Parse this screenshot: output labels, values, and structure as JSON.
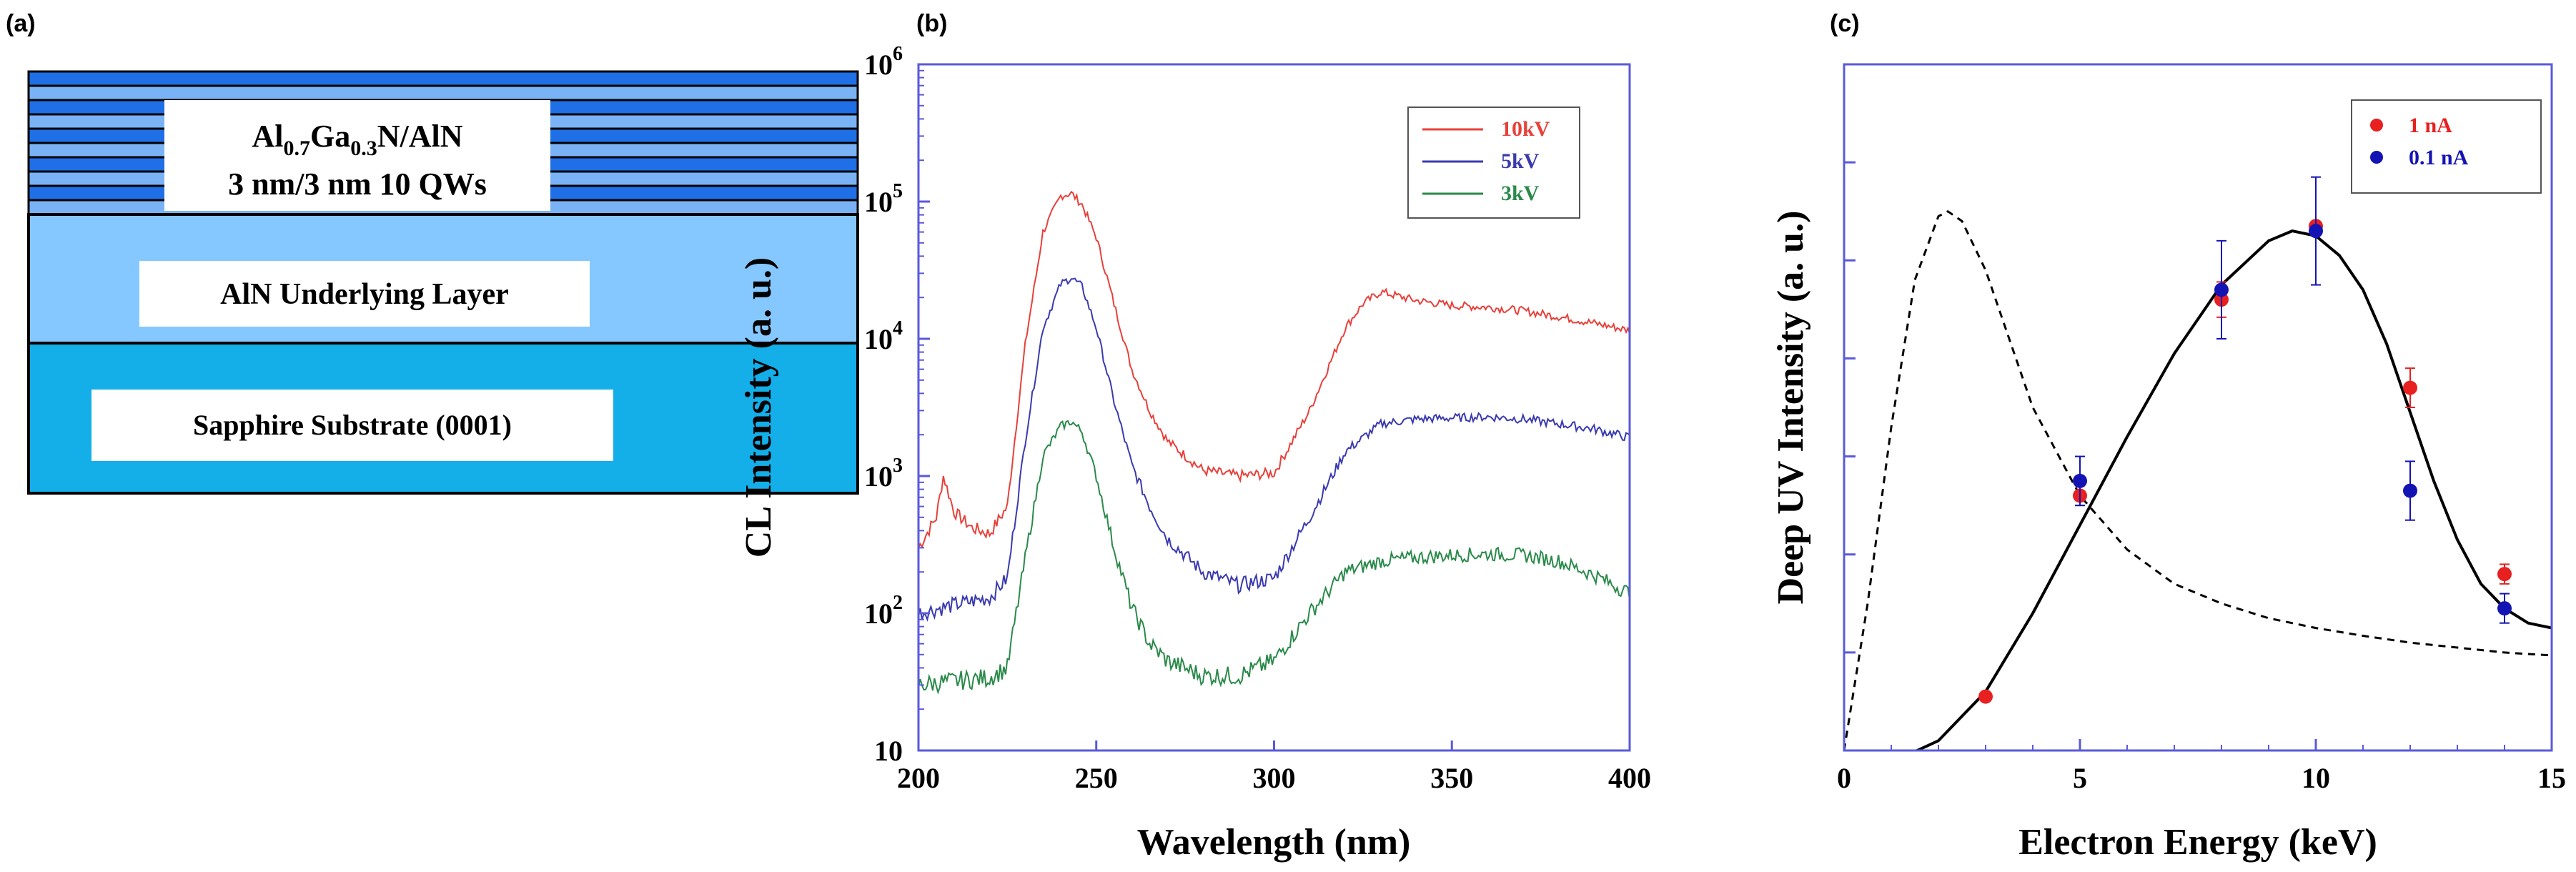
{
  "panels": {
    "a": {
      "label": "(a)"
    },
    "b": {
      "label": "(b)"
    },
    "c": {
      "label": "(c)"
    }
  },
  "structure": {
    "qw_line1_parts": [
      "Al",
      "0.7",
      "Ga",
      "0.3",
      "N/AlN"
    ],
    "qw_line2": "3 nm/3 nm 10 QWs",
    "underlying_layer": "AlN Underlying Layer",
    "substrate": "Sapphire Substrate (0001)",
    "colors": {
      "qw_dark": "#1f6fe6",
      "qw_light": "#7ab3f5",
      "underlying": "#85c8ff",
      "substrate": "#14aee8",
      "outline": "#000000"
    }
  },
  "chart_data": [
    {
      "type": "line",
      "panel": "(b)",
      "title": "",
      "xlabel": "Wavelength (nm)",
      "ylabel": "CL Intensity (a. u.)",
      "xlim": [
        200,
        400
      ],
      "ylim": [
        10,
        1000000
      ],
      "yscale": "log",
      "xticks": [
        "200",
        "250",
        "300",
        "350",
        "400"
      ],
      "yticks": [
        {
          "value": 10,
          "base": "10",
          "exp": ""
        },
        {
          "value": 100,
          "base": "10",
          "exp": "2"
        },
        {
          "value": 1000,
          "base": "10",
          "exp": "3"
        },
        {
          "value": 10000,
          "base": "10",
          "exp": "4"
        },
        {
          "value": 100000,
          "base": "10",
          "exp": "5"
        },
        {
          "value": 1000000,
          "base": "10",
          "exp": "6"
        }
      ],
      "legend_position": "top-right",
      "series": [
        {
          "name": "10kV",
          "color": "#e8403a",
          "x": [
            200,
            205,
            207,
            210,
            215,
            220,
            225,
            230,
            235,
            240,
            243,
            246,
            250,
            255,
            260,
            265,
            270,
            280,
            290,
            300,
            310,
            320,
            325,
            330,
            340,
            350,
            360,
            370,
            380,
            390,
            400
          ],
          "y": [
            300,
            500,
            1000,
            550,
            420,
            380,
            600,
            9000,
            60000,
            110000,
            115000,
            95000,
            55000,
            18000,
            6000,
            3000,
            1800,
            1100,
            1000,
            1050,
            3000,
            12000,
            18000,
            22000,
            19000,
            17500,
            17000,
            16000,
            14500,
            13000,
            11500
          ]
        },
        {
          "name": "5kV",
          "color": "#3a3ab0",
          "x": [
            200,
            210,
            220,
            225,
            230,
            235,
            240,
            243,
            246,
            250,
            255,
            260,
            265,
            270,
            280,
            290,
            300,
            310,
            320,
            330,
            340,
            350,
            360,
            370,
            380,
            390,
            400
          ],
          "y": [
            100,
            115,
            130,
            180,
            1800,
            12000,
            25000,
            28000,
            24000,
            12000,
            3500,
            1200,
            600,
            350,
            200,
            160,
            180,
            500,
            1500,
            2400,
            2600,
            2650,
            2700,
            2600,
            2400,
            2200,
            1900
          ]
        },
        {
          "name": "3kV",
          "color": "#2a8a4a",
          "x": [
            200,
            210,
            220,
            225,
            230,
            235,
            240,
            243,
            246,
            250,
            255,
            260,
            265,
            270,
            280,
            290,
            300,
            310,
            320,
            330,
            340,
            350,
            360,
            370,
            380,
            390,
            400
          ],
          "y": [
            30,
            32,
            34,
            40,
            250,
            1400,
            2300,
            2500,
            2100,
            1000,
            300,
            110,
            60,
            45,
            35,
            35,
            45,
            100,
            200,
            240,
            255,
            265,
            270,
            265,
            240,
            190,
            140
          ]
        }
      ]
    },
    {
      "type": "scatter",
      "panel": "(c)",
      "title": "",
      "xlabel": "Electron Energy (keV)",
      "ylabel": "Deep UV Intensity (a. u.)",
      "xlim": [
        0,
        15
      ],
      "ylim": [
        0,
        7
      ],
      "xticks": [
        "0",
        "5",
        "10",
        "15"
      ],
      "legend_position": "top-right",
      "series": [
        {
          "name": "1 nA",
          "color": "#e82020",
          "x": [
            3,
            5,
            8,
            10,
            12,
            14
          ],
          "y": [
            0.55,
            2.6,
            4.6,
            5.35,
            3.7,
            1.8
          ],
          "err": [
            0,
            0.1,
            0.18,
            0,
            0.2,
            0.1
          ]
        },
        {
          "name": "0.1 nA",
          "color": "#1414b4",
          "x": [
            5,
            8,
            10,
            12,
            14
          ],
          "y": [
            2.75,
            4.7,
            5.3,
            2.65,
            1.45
          ],
          "err": [
            0.25,
            0.5,
            0.55,
            0.3,
            0.15
          ]
        }
      ],
      "curves": [
        {
          "name": "fit",
          "style": "solid",
          "color": "#000000",
          "x": [
            1.1,
            2,
            3,
            4,
            5,
            6,
            7,
            8,
            9,
            9.5,
            10,
            10.5,
            11,
            11.5,
            12,
            12.5,
            13,
            13.5,
            14,
            14.5,
            15
          ],
          "y": [
            -0.1,
            0.1,
            0.6,
            1.4,
            2.3,
            3.2,
            4.05,
            4.75,
            5.2,
            5.3,
            5.25,
            5.05,
            4.7,
            4.15,
            3.45,
            2.75,
            2.15,
            1.7,
            1.45,
            1.3,
            1.25
          ]
        },
        {
          "name": "simulation",
          "style": "dashed",
          "color": "#000000",
          "x": [
            0,
            0.5,
            1,
            1.5,
            2,
            2.2,
            2.5,
            3,
            3.5,
            4,
            5,
            6,
            7,
            8,
            9,
            10,
            11,
            12,
            13,
            14,
            15
          ],
          "y": [
            0,
            1.5,
            3.3,
            4.8,
            5.45,
            5.5,
            5.4,
            4.9,
            4.2,
            3.5,
            2.6,
            2.05,
            1.7,
            1.5,
            1.35,
            1.25,
            1.17,
            1.1,
            1.05,
            1.0,
            0.97
          ]
        }
      ]
    }
  ]
}
